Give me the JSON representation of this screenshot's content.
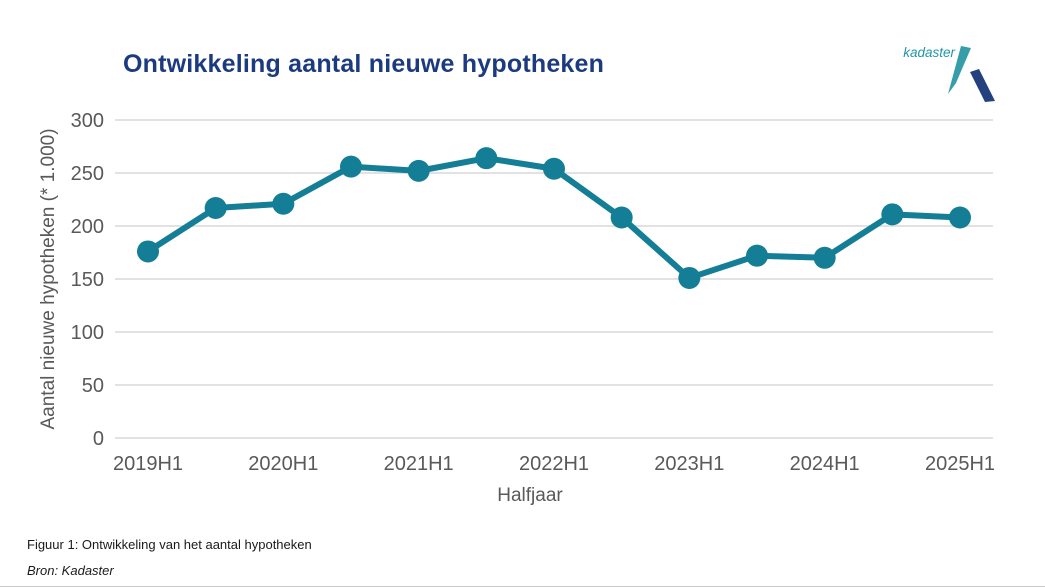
{
  "header": {
    "title": "Ontwikkeling aantal nieuwe hypotheken"
  },
  "logo": {
    "text": "kadaster",
    "text_color": "#1f95a9",
    "wedge_color": "#359ea8",
    "stroke_color": "#24407f"
  },
  "chart_data": {
    "type": "line",
    "title": "Ontwikkeling aantal nieuwe hypotheken",
    "xlabel": "Halfjaar",
    "ylabel": "Aantal nieuwe hypotheken  (* 1.000)",
    "categories": [
      "2019H1",
      "2019H2",
      "2020H1",
      "2020H2",
      "2021H1",
      "2021H2",
      "2022H1",
      "2022H2",
      "2023H1",
      "2023H2",
      "2024H1",
      "2024H2",
      "2025H1"
    ],
    "values": [
      176,
      217,
      221,
      256,
      252,
      264,
      254,
      208,
      151,
      172,
      170,
      211,
      208
    ],
    "x_tick_labels": [
      "2019H1",
      "2020H1",
      "2021H1",
      "2022H1",
      "2023H1",
      "2024H1",
      "2025H1"
    ],
    "y_ticks": [
      0,
      50,
      100,
      150,
      200,
      250,
      300
    ],
    "ylim": [
      0,
      300
    ],
    "grid": "horizontal",
    "legend": "none",
    "series_name": "Aantal nieuwe hypotheken"
  },
  "caption": {
    "figure": "Figuur 1: Ontwikkeling van het aantal hypotheken",
    "source": "Bron: Kadaster"
  },
  "colors": {
    "line": "#137e95",
    "marker": "#137e95",
    "gridline": "#d9d9d9",
    "axis_text": "#595959",
    "title_text": "#1b3a80"
  }
}
